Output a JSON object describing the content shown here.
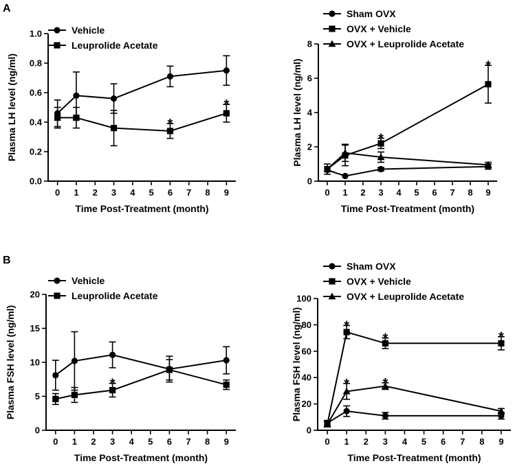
{
  "panel_labels": [
    "A",
    "B"
  ],
  "chart_data": [
    {
      "type": "line",
      "title": "",
      "xlabel": "Time Post-Treatment (month)",
      "ylabel": "Plasma LH level (ng/ml)",
      "xlim": [
        -0.5,
        9.5
      ],
      "xticks": [
        0,
        1,
        2,
        3,
        4,
        5,
        6,
        7,
        8,
        9
      ],
      "ylim": [
        0,
        1.0
      ],
      "yticks": [
        0.0,
        0.2,
        0.4,
        0.6,
        0.8,
        1.0
      ],
      "ytick_labels": [
        "0.0",
        "0.2",
        "0.4",
        "0.6",
        "0.8",
        "1.0"
      ],
      "legend_position": "top-left",
      "series": [
        {
          "name": "Vehicle",
          "marker": "circle",
          "x": [
            0,
            1,
            3,
            6,
            9
          ],
          "y": [
            0.46,
            0.58,
            0.56,
            0.71,
            0.75
          ],
          "err": [
            0.09,
            0.16,
            0.1,
            0.07,
            0.1
          ]
        },
        {
          "name": "Leuprolide Acetate",
          "marker": "square",
          "x": [
            0,
            1,
            3,
            6,
            9
          ],
          "y": [
            0.43,
            0.43,
            0.36,
            0.34,
            0.46
          ],
          "err": [
            0.07,
            0.07,
            0.12,
            0.05,
            0.06
          ]
        }
      ],
      "annotations": [
        {
          "text": "*",
          "x": 6,
          "y": 0.34,
          "err": 0.05
        },
        {
          "text": "*",
          "x": 9,
          "y": 0.46,
          "err": 0.06
        }
      ]
    },
    {
      "type": "line",
      "title": "",
      "xlabel": "Time Post-Treatment (month)",
      "ylabel": "Plasma LH level (ng/ml)",
      "xlim": [
        -0.5,
        9.5
      ],
      "xticks": [
        0,
        1,
        2,
        3,
        4,
        5,
        6,
        7,
        8,
        9
      ],
      "ylim": [
        0,
        8
      ],
      "yticks": [
        0,
        2,
        4,
        6,
        8
      ],
      "ytick_labels": [
        "0",
        "2",
        "4",
        "6",
        "8"
      ],
      "legend_position": "top",
      "series": [
        {
          "name": "Sham OVX",
          "marker": "circle",
          "x": [
            0,
            1,
            3,
            9
          ],
          "y": [
            0.65,
            0.3,
            0.7,
            0.85
          ],
          "err": [
            0.0,
            0.0,
            0.1,
            0.15
          ]
        },
        {
          "name": "OVX + Vehicle",
          "marker": "square",
          "x": [
            0,
            1,
            3,
            9
          ],
          "y": [
            0.7,
            1.5,
            2.2,
            5.65
          ],
          "err": [
            0.3,
            0.6,
            0.3,
            1.1
          ]
        },
        {
          "name": "OVX + Leuprolide Acetate",
          "marker": "triangle",
          "x": [
            0,
            1,
            3,
            9
          ],
          "y": [
            0.7,
            1.65,
            1.4,
            0.95
          ],
          "err": [
            0.0,
            0.5,
            0.3,
            0.15
          ]
        }
      ],
      "annotations": [
        {
          "text": "*",
          "x": 3,
          "y": 2.2,
          "err": 0.3
        },
        {
          "text": "*",
          "x": 9,
          "y": 5.65,
          "err": 1.1
        }
      ]
    },
    {
      "type": "line",
      "title": "",
      "xlabel": "Time Post-Treatment (month)",
      "ylabel": "Plasma FSH level (ng/ml)",
      "xlim": [
        -0.5,
        9.5
      ],
      "xticks": [
        0,
        1,
        2,
        3,
        4,
        5,
        6,
        7,
        8,
        9
      ],
      "ylim": [
        0,
        20
      ],
      "yticks": [
        0,
        5,
        10,
        15,
        20
      ],
      "ytick_labels": [
        "0",
        "5",
        "10",
        "15",
        "20"
      ],
      "legend_position": "top-left",
      "series": [
        {
          "name": "Vehicle",
          "marker": "circle",
          "x": [
            0,
            1,
            3,
            6,
            9
          ],
          "y": [
            8.1,
            10.2,
            11.1,
            9.0,
            10.3
          ],
          "err": [
            2.2,
            4.3,
            1.9,
            1.9,
            2.0
          ]
        },
        {
          "name": "Leuprolide Acetate",
          "marker": "square",
          "x": [
            0,
            1,
            3,
            6,
            9
          ],
          "y": [
            4.6,
            5.2,
            5.9,
            8.9,
            6.7
          ],
          "err": [
            0.8,
            1.1,
            1.0,
            1.5,
            0.7
          ]
        }
      ],
      "annotations": [
        {
          "text": "*",
          "x": 3,
          "y": 5.9,
          "err": 1.0
        }
      ]
    },
    {
      "type": "line",
      "title": "",
      "xlabel": "Time Post-Treatment (month)",
      "ylabel": "Plasma FSH level (ng/ml)",
      "xlim": [
        -0.5,
        9.5
      ],
      "xticks": [
        0,
        1,
        2,
        3,
        4,
        5,
        6,
        7,
        8,
        9
      ],
      "ylim": [
        0,
        100
      ],
      "yticks": [
        0,
        20,
        40,
        60,
        80,
        100
      ],
      "ytick_labels": [
        "0",
        "20",
        "40",
        "60",
        "80",
        "100"
      ],
      "legend_position": "top",
      "series": [
        {
          "name": "Sham OVX",
          "marker": "circle",
          "x": [
            0,
            1,
            3,
            9
          ],
          "y": [
            5.5,
            14.5,
            11.0,
            11.0
          ],
          "err": [
            2.0,
            4.0,
            2.5,
            2.5
          ]
        },
        {
          "name": "OVX + Vehicle",
          "marker": "square",
          "x": [
            0,
            1,
            3,
            9
          ],
          "y": [
            4.5,
            74.5,
            66.0,
            66.0
          ],
          "err": [
            2.0,
            5.0,
            4.0,
            5.0
          ]
        },
        {
          "name": "OVX + Leuprolide Acetate",
          "marker": "triangle",
          "x": [
            0,
            1,
            3,
            9
          ],
          "y": [
            4.5,
            29.5,
            33.5,
            14.5
          ],
          "err": [
            2.0,
            6.0,
            2.5,
            2.0
          ]
        }
      ],
      "annotations": [
        {
          "text": "*",
          "x": 1,
          "y": 74.5,
          "err": 5.0
        },
        {
          "text": "*",
          "x": 3,
          "y": 66.0,
          "err": 4.0
        },
        {
          "text": "*",
          "x": 9,
          "y": 66.0,
          "err": 5.0
        },
        {
          "text": "*",
          "x": 1,
          "y": 29.5,
          "err": 6.0
        },
        {
          "text": "*",
          "x": 3,
          "y": 33.5,
          "err": 2.5
        }
      ]
    }
  ]
}
